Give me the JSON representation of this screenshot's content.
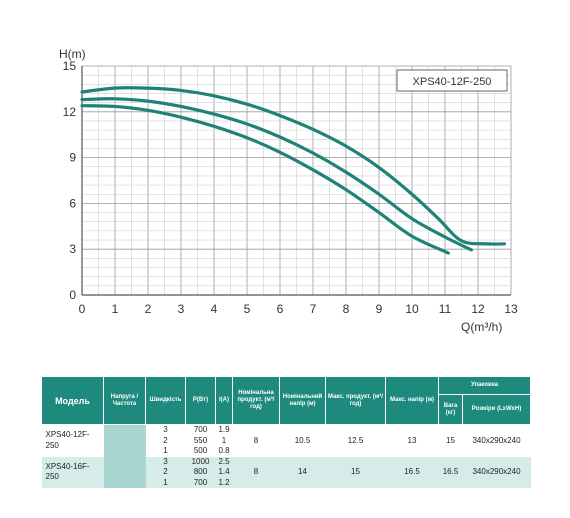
{
  "chart_data": {
    "type": "line",
    "title": "XPS40-12F-250",
    "xlabel": "Q(m³/h)",
    "ylabel": "H(m)",
    "xlim": [
      0,
      13
    ],
    "ylim": [
      0,
      15
    ],
    "xticks": [
      0,
      1,
      2,
      3,
      4,
      5,
      6,
      7,
      8,
      9,
      10,
      11,
      12,
      13
    ],
    "yticks": [
      0,
      3,
      6,
      9,
      12,
      15
    ],
    "minor_grid_per_major_x": 2,
    "minor_grid_per_major_y": 5,
    "grid": true,
    "line_color": "#1f8277",
    "series": [
      {
        "x": [
          0,
          1,
          2,
          3,
          4,
          5,
          6,
          7,
          8,
          9,
          10,
          10.8,
          11.5,
          12.3,
          12.8
        ],
        "y": [
          13.3,
          13.55,
          13.55,
          13.4,
          13.05,
          12.5,
          11.75,
          10.85,
          9.75,
          8.35,
          6.6,
          5.0,
          3.55,
          3.35,
          3.35
        ]
      },
      {
        "x": [
          0,
          1,
          2,
          3,
          4,
          5,
          6,
          7,
          8,
          9,
          10,
          11,
          11.8
        ],
        "y": [
          12.8,
          12.85,
          12.7,
          12.35,
          11.85,
          11.2,
          10.35,
          9.3,
          8.05,
          6.6,
          5.0,
          3.8,
          2.95
        ]
      },
      {
        "x": [
          0,
          1,
          2,
          3,
          4,
          5,
          6,
          7,
          8,
          9,
          10,
          11.1
        ],
        "y": [
          12.4,
          12.35,
          12.1,
          11.65,
          11.05,
          10.3,
          9.35,
          8.2,
          6.9,
          5.4,
          3.85,
          2.75
        ]
      }
    ]
  },
  "table": {
    "headers": {
      "model": "Модель",
      "voltage": "Напруга /Частота",
      "speed": "Швидкість",
      "power": "Р(Вт)",
      "current": "I(A)",
      "nominal_flow": "Номінальна продукт. (м³/год)",
      "nominal_head": "Номінальний напір (м)",
      "max_flow": "Макс. продукт. (м³/год)",
      "max_head": "Макс. напір (м)",
      "packing": "Упаковка",
      "weight": "Вага (кг)",
      "dims": "Розміри (LxWxH)"
    },
    "rows": [
      {
        "speed": "3",
        "power": "700",
        "current": "1.9"
      },
      {
        "model": "XPS40-12F-250",
        "speed": "2",
        "power": "550",
        "current": "1",
        "nominal_flow": "8",
        "nominal_head": "10.5",
        "max_flow": "12.5",
        "max_head": "13",
        "weight": "15",
        "dims": "340x290x240"
      },
      {
        "speed": "1",
        "power": "500",
        "current": "0.8"
      },
      {
        "speed": "3",
        "power": "1000",
        "current": "2.5"
      },
      {
        "model": "XPS40-16F-250",
        "speed": "2",
        "power": "800",
        "current": "1.4",
        "nominal_flow": "8",
        "nominal_head": "14",
        "max_flow": "15",
        "max_head": "16.5",
        "weight": "16.5",
        "dims": "340x290x240"
      },
      {
        "speed": "1",
        "power": "700",
        "current": "1.2"
      }
    ]
  }
}
